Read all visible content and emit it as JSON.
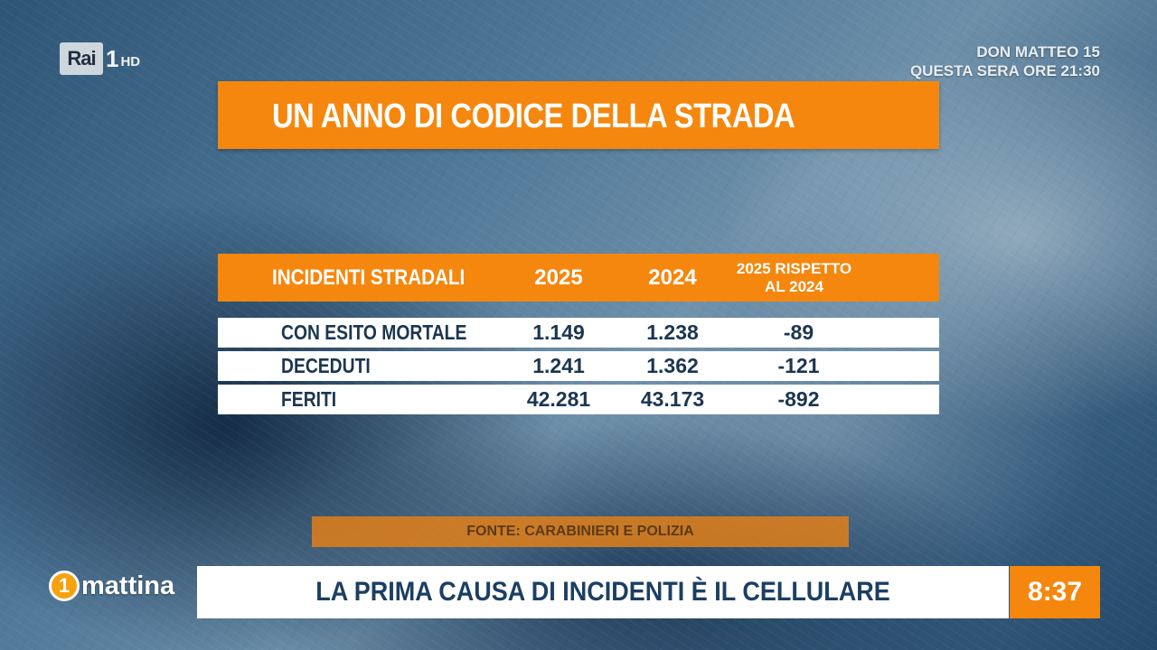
{
  "channel": {
    "rai": "Rai",
    "number": "1",
    "hd": "HD"
  },
  "promo": {
    "line1": "DON MATTEO 15",
    "line2": "QUESTA SERA ORE 21:30"
  },
  "title": "UN ANNO DI CODICE DELLA STRADA",
  "table": {
    "headers": [
      "INCIDENTI STRADALI",
      "2025",
      "2024",
      "2025 RISPETTO",
      "AL 2024"
    ],
    "rows": [
      [
        "CON ESITO MORTALE",
        "1.149",
        "1.238",
        "-89"
      ],
      [
        "DECEDUTI",
        "1.241",
        "1.362",
        "-121"
      ],
      [
        "FERITI",
        "42.281",
        "43.173",
        "-892"
      ]
    ]
  },
  "source": "FONTE: CARABINIERI E POLIZIA",
  "show": {
    "number": "1",
    "name": "mattina"
  },
  "ticker": "LA PRIMA CAUSA DI INCIDENTI È IL CELLULARE",
  "clock": "8:37",
  "colors": {
    "accent_orange": "#f5870e",
    "text_navy": "#1b3650"
  }
}
